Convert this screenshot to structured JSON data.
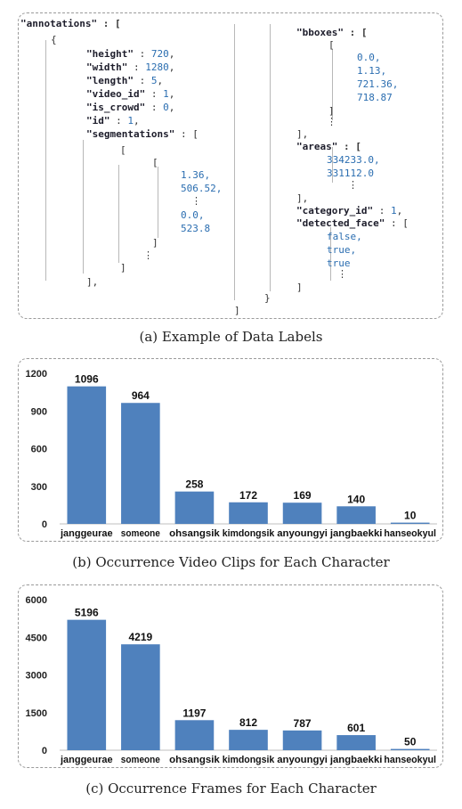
{
  "code": {
    "annotations_key": "\"annotations\"",
    "height_key": "\"height\"",
    "height_val": "720",
    "width_key": "\"width\"",
    "width_val": "1280",
    "length_key": "\"length\"",
    "length_val": "5",
    "video_id_key": "\"video_id\"",
    "video_id_val": "1",
    "is_crowd_key": "\"is_crowd\"",
    "is_crowd_val": "0",
    "id_key": "\"id\"",
    "id_val": "1",
    "segmentations_key": "\"segmentations\"",
    "seg_values": [
      "1.36,",
      "506.52,",
      "0.0,",
      "523.8"
    ],
    "bboxes_key": "\"bboxes\"",
    "bbox_values": [
      "0.0,",
      "1.13,",
      "721.36,",
      "718.87"
    ],
    "areas_key": "\"areas\"",
    "area_values": [
      "334233.0,",
      "331112.0"
    ],
    "category_id_key": "\"category_id\"",
    "category_id_val": "1",
    "detected_face_key": "\"detected_face\"",
    "face_values": [
      "false,",
      "true,",
      "true"
    ]
  },
  "captions": {
    "a": "(a) Example of Data Labels",
    "b": "(b) Occurrence Video Clips for Each Character",
    "c": "(c) Occurrence Frames for Each Character"
  },
  "chart_data": [
    {
      "type": "bar",
      "categories": [
        "janggeurae",
        "someone",
        "ohsangsik",
        "kimdongsik",
        "anyoungyi",
        "jangbaekki",
        "hanseokyul"
      ],
      "values": [
        1096,
        964,
        258,
        172,
        169,
        140,
        10
      ],
      "ylim": [
        0,
        1200
      ],
      "yticks": [
        0,
        300,
        600,
        900,
        1200
      ],
      "grid": false,
      "color": "#4f81bd"
    },
    {
      "type": "bar",
      "categories": [
        "janggeurae",
        "someone",
        "ohsangsik",
        "kimdongsik",
        "anyoungyi",
        "jangbaekki",
        "hanseokyul"
      ],
      "values": [
        5196,
        4219,
        1197,
        812,
        787,
        601,
        50
      ],
      "ylim": [
        0,
        6000
      ],
      "yticks": [
        0,
        1500,
        3000,
        4500,
        6000
      ],
      "grid": false,
      "color": "#4f81bd"
    }
  ]
}
